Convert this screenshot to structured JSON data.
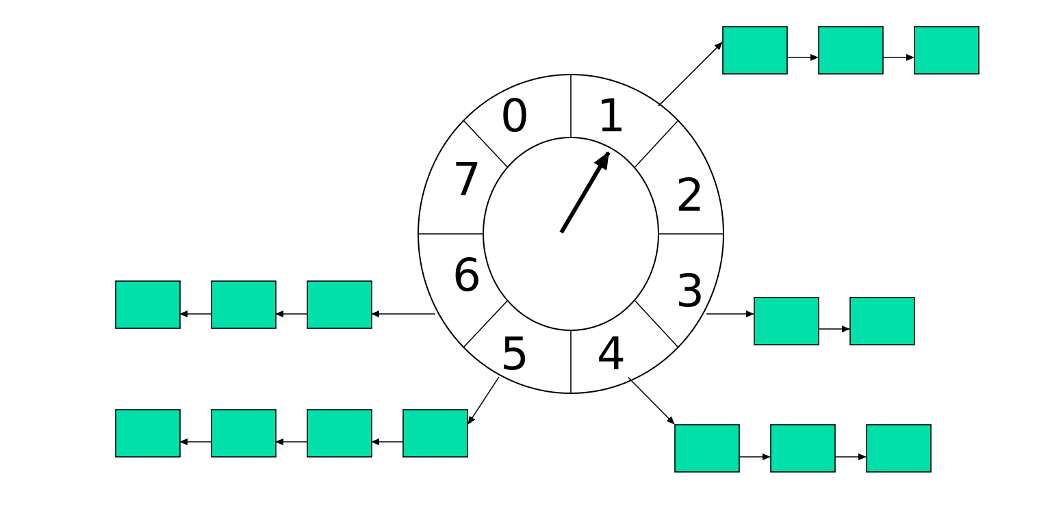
{
  "colors": {
    "node_fill": "#00e0a8",
    "stroke": "#000000",
    "background": "#ffffff"
  },
  "wheel": {
    "slots": [
      {
        "label": "0",
        "node_count": 0
      },
      {
        "label": "1",
        "node_count": 3
      },
      {
        "label": "2",
        "node_count": 0
      },
      {
        "label": "3",
        "node_count": 2
      },
      {
        "label": "4",
        "node_count": 3
      },
      {
        "label": "5",
        "node_count": 4
      },
      {
        "label": "6",
        "node_count": 3
      },
      {
        "label": "7",
        "node_count": 0
      }
    ],
    "current_slot": "1"
  }
}
